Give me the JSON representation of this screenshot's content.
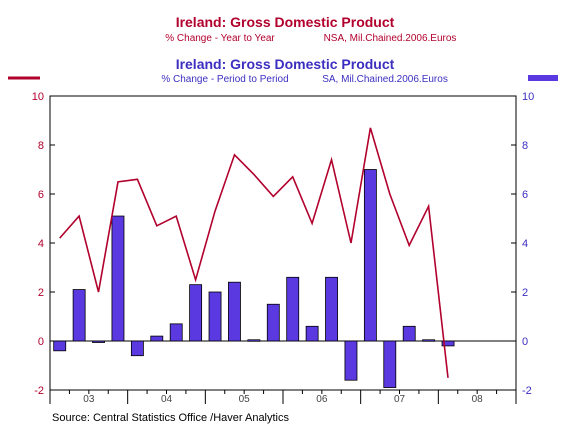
{
  "chart_data": {
    "type": "bar",
    "title1": "Ireland: Gross Domestic Product",
    "subtitle1_left": "% Change - Year to Year",
    "subtitle1_right": "NSA, Mil.Chained.2006.Euros",
    "title2": "Ireland: Gross Domestic Product",
    "subtitle2_left": "% Change - Period to Period",
    "subtitle2_right": "SA, Mil.Chained.2006.Euros",
    "source": "Source:  Central Statistics Office /Haver Analytics",
    "ylim": [
      -2,
      10
    ],
    "yticks": [
      -2,
      0,
      2,
      4,
      6,
      8,
      10
    ],
    "x_year_labels": [
      "03",
      "04",
      "05",
      "06",
      "07",
      "08"
    ],
    "colors": {
      "line": "#b2002d",
      "bar": "#5a3ae0",
      "bar_edge": "#000000",
      "title1": "#b2002d",
      "title2": "#3c2fc0"
    },
    "series": [
      {
        "name": "Year to Year",
        "kind": "line",
        "values": [
          4.2,
          5.1,
          2.0,
          6.5,
          6.6,
          4.7,
          5.1,
          2.5,
          5.3,
          7.6,
          6.8,
          5.9,
          6.7,
          4.8,
          7.4,
          4.0,
          8.7,
          6.0,
          3.9,
          5.5,
          -1.5
        ]
      },
      {
        "name": "Period to Period",
        "kind": "bar",
        "values": [
          -0.4,
          2.1,
          0.0,
          5.1,
          -0.6,
          0.2,
          0.7,
          2.3,
          2.0,
          2.4,
          0.05,
          1.5,
          2.6,
          0.6,
          2.6,
          -1.6,
          7.0,
          -1.9,
          0.6,
          0.05,
          -0.2
        ]
      }
    ]
  }
}
